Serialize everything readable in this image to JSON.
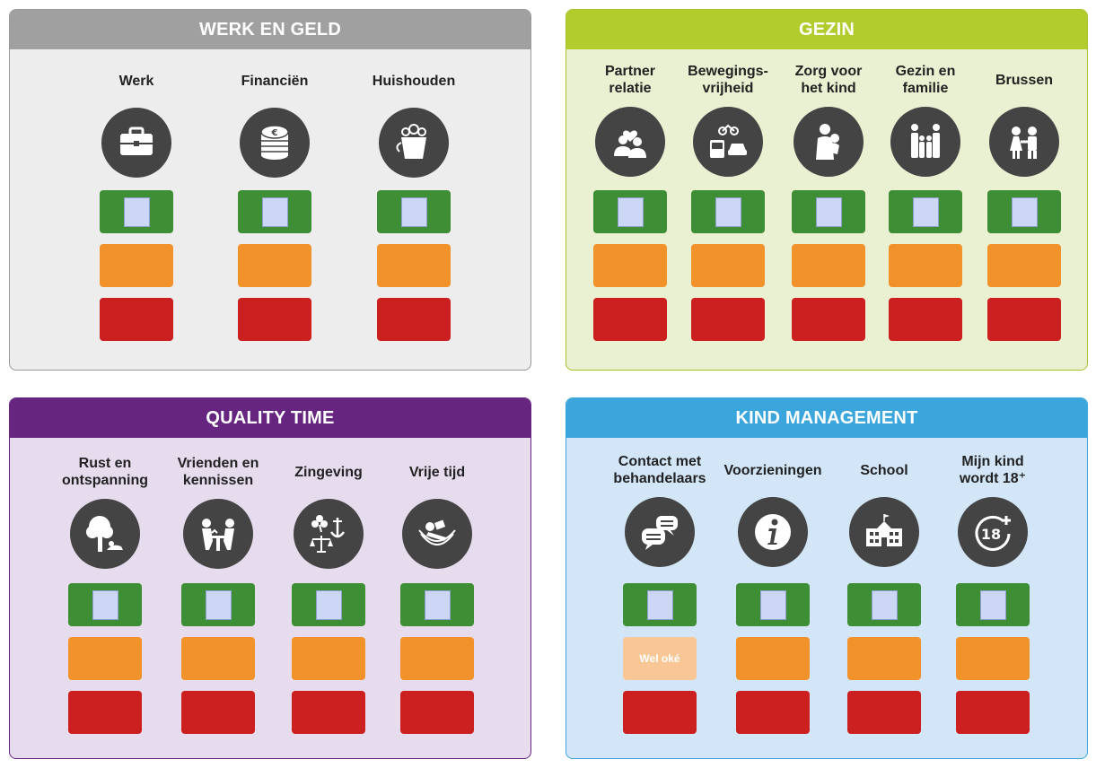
{
  "colors": {
    "werk_header": "#a0a0a0",
    "werk_bg": "#ededed",
    "gezin_header": "#b2cc2e",
    "gezin_bg": "#eaf1d2",
    "qt_header": "#662680",
    "qt_bg": "#e6dced",
    "kind_header": "#3ba6dc",
    "kind_bg": "#d2e6f8",
    "green": "#3e8e35",
    "orange": "#f2922b",
    "red": "#cc1f1f"
  },
  "panels": {
    "werk": {
      "title": "WERK EN GELD",
      "items": [
        {
          "label": "Werk",
          "icon": "briefcase-icon"
        },
        {
          "label": "Financiën",
          "icon": "euro-coins-icon"
        },
        {
          "label": "Huishouden",
          "icon": "bucket-icon"
        }
      ]
    },
    "gezin": {
      "title": "GEZIN",
      "items": [
        {
          "label": "Partner\nrelatie",
          "icon": "couple-heart-icon"
        },
        {
          "label": "Bewegings-\nvrijheid",
          "icon": "transport-icon"
        },
        {
          "label": "Zorg voor\nhet kind",
          "icon": "parent-child-icon"
        },
        {
          "label": "Gezin en\nfamilie",
          "icon": "family-icon"
        },
        {
          "label": "Brussen",
          "icon": "siblings-icon"
        }
      ]
    },
    "qt": {
      "title": "QUALITY TIME",
      "items": [
        {
          "label": "Rust en\nontspanning",
          "icon": "tree-rest-icon"
        },
        {
          "label": "Vrienden en\nkennissen",
          "icon": "friends-table-icon"
        },
        {
          "label": "Zingeving",
          "icon": "clover-anchor-scale-icon"
        },
        {
          "label": "Vrije tijd",
          "icon": "hammock-reading-icon"
        }
      ]
    },
    "kind": {
      "title": "KIND MANAGEMENT",
      "items": [
        {
          "label": "Contact met\nbehandelaars",
          "icon": "speech-bubbles-icon"
        },
        {
          "label": "Voorzieningen",
          "icon": "info-icon"
        },
        {
          "label": "School",
          "icon": "school-building-icon"
        },
        {
          "label": "Mijn kind\nwordt 18⁺",
          "icon": "eighteen-plus-icon"
        }
      ],
      "highlight_label": "Wel oké"
    }
  }
}
